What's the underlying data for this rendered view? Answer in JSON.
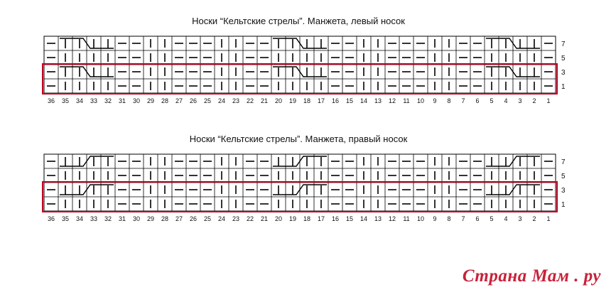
{
  "charts": [
    {
      "title": "Носки “Кельтские стрелы”. Манжета, левый носок",
      "row_labels": [
        "7",
        "5",
        "3",
        "1"
      ],
      "column_labels": [
        "36",
        "35",
        "34",
        "33",
        "32",
        "31",
        "30",
        "29",
        "28",
        "27",
        "26",
        "25",
        "24",
        "23",
        "22",
        "21",
        "20",
        "19",
        "18",
        "17",
        "16",
        "15",
        "14",
        "13",
        "12",
        "11",
        "10",
        "9",
        "8",
        "7",
        "6",
        "5",
        "4",
        "3",
        "2",
        "1"
      ],
      "cable_direction": "left",
      "highlighted_rows": [
        "3",
        "1"
      ]
    },
    {
      "title": "Носки “Кельтские стрелы”. Манжета, правый носок",
      "row_labels": [
        "7",
        "5",
        "3",
        "1"
      ],
      "column_labels": [
        "36",
        "35",
        "34",
        "33",
        "32",
        "31",
        "30",
        "29",
        "28",
        "27",
        "26",
        "25",
        "24",
        "23",
        "22",
        "21",
        "20",
        "19",
        "18",
        "17",
        "16",
        "15",
        "14",
        "13",
        "12",
        "11",
        "10",
        "9",
        "8",
        "7",
        "6",
        "5",
        "4",
        "3",
        "2",
        "1"
      ],
      "cable_direction": "right",
      "highlighted_rows": [
        "3",
        "1"
      ]
    }
  ],
  "legend_symbols": {
    "knit": "vertical bar",
    "purl": "horizontal dash",
    "cable": "crossed stitches (columns 35-32, 20-17, 5-2)"
  },
  "cable_columns": [
    [
      "35",
      "34",
      "33",
      "32"
    ],
    [
      "20",
      "19",
      "18",
      "17"
    ],
    [
      "5",
      "4",
      "3",
      "2"
    ]
  ],
  "purl_columns": [
    "36",
    "31",
    "30",
    "27",
    "26",
    "25",
    "22",
    "21",
    "16",
    "15",
    "12",
    "11",
    "10",
    "7",
    "6",
    "1"
  ],
  "watermark": "Страна Мам . ру",
  "colors": {
    "grid": "#000000",
    "highlight": "#c00020",
    "watermark": "#c7223a"
  }
}
